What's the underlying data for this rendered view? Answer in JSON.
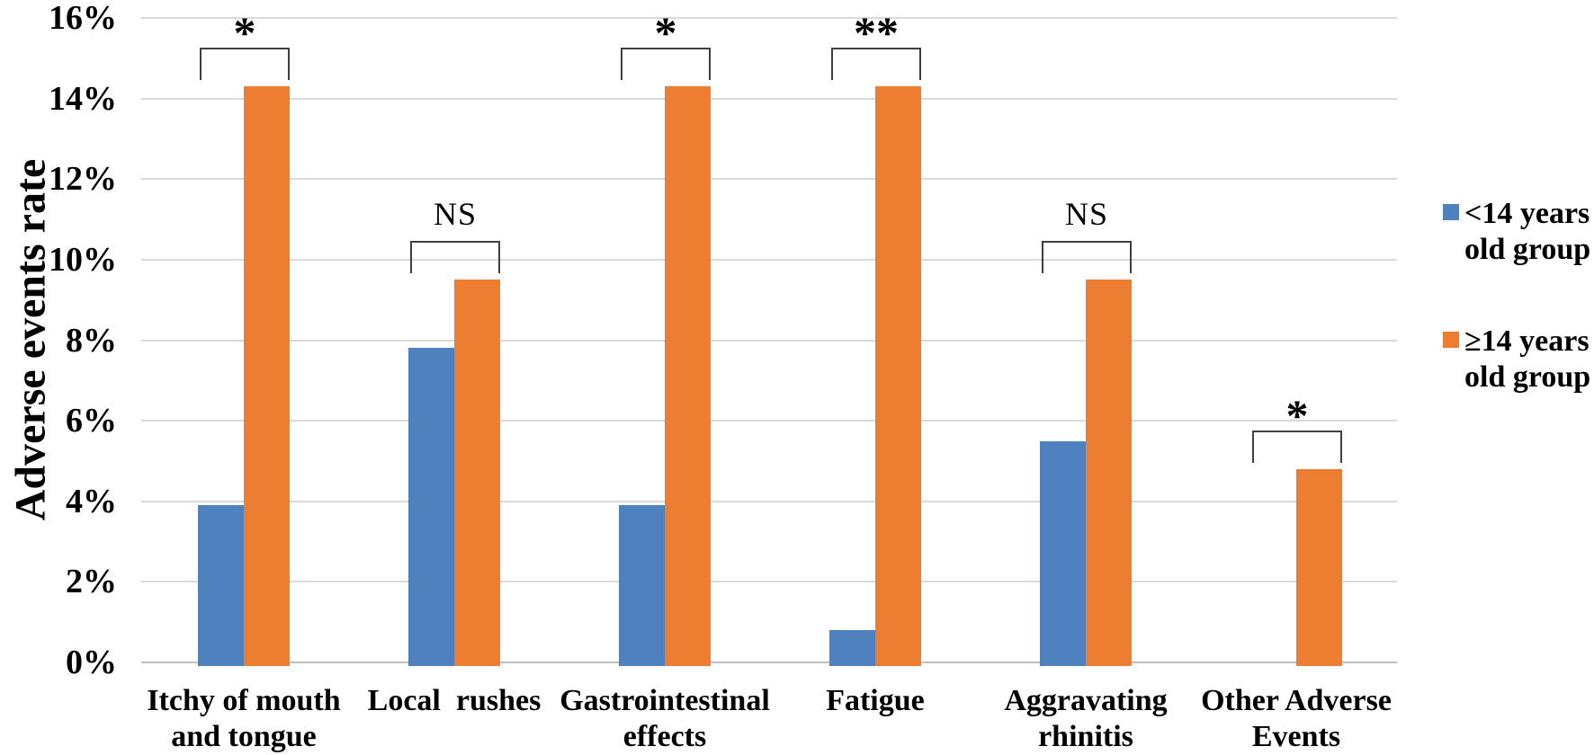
{
  "chart_data": {
    "type": "bar",
    "title": "",
    "y_axis_title": "Adverse events rate",
    "categories": [
      "Itchy of mouth and tongue",
      "Local rushes",
      "Gastrointestinal effects",
      "Fatigue",
      "Aggravating rhinitis",
      "Other Adverse Events"
    ],
    "category_label_lines": [
      [
        "Itchy of mouth",
        "and tongue"
      ],
      [
        "Local  rushes"
      ],
      [
        "Gastrointestinal",
        "effects"
      ],
      [
        "Fatigue"
      ],
      [
        "Aggravating",
        "rhinitis"
      ],
      [
        "Other Adverse",
        "Events"
      ]
    ],
    "series": [
      {
        "name": "<14 years old group",
        "color": "#4E81BD",
        "values": [
          3.9,
          7.8,
          3.9,
          0.8,
          5.5,
          0
        ]
      },
      {
        "name": "≥14 years old group",
        "color": "#ED7D31",
        "values": [
          14.3,
          9.5,
          14.3,
          14.3,
          9.5,
          4.8
        ]
      }
    ],
    "significance_by_category": [
      "*",
      "NS",
      "*",
      "**",
      "NS",
      "*"
    ],
    "ylim": [
      0,
      16
    ],
    "ytick_step": 2,
    "ytick_labels": [
      "0%",
      "2%",
      "4%",
      "6%",
      "8%",
      "10%",
      "12%",
      "14%",
      "16%"
    ],
    "grid": true,
    "legend_position": "right",
    "colors": {
      "gridline": "#D9D9D9",
      "axis_line": "#C0C0C0",
      "bracket": "#404040",
      "text": "#000000"
    }
  },
  "legend": {
    "items": [
      {
        "line1": "<14 years",
        "line2": "old group"
      },
      {
        "line1": "≥14 years",
        "line2": "old group"
      }
    ]
  }
}
